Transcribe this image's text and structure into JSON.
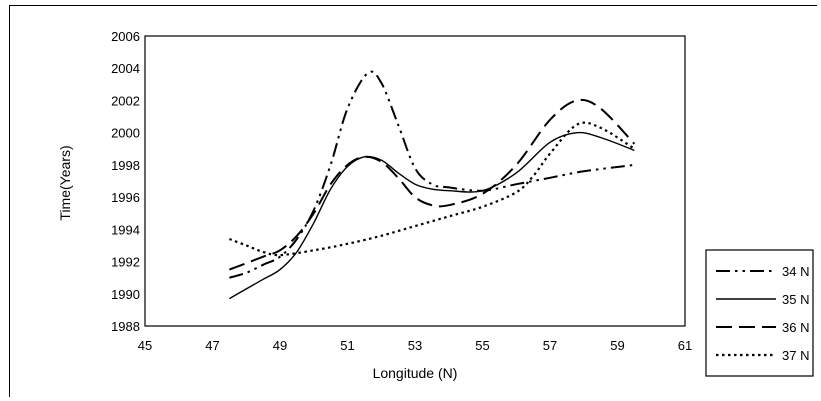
{
  "chart_data": {
    "type": "line",
    "title": "",
    "xlabel": "Longitude (N)",
    "ylabel": "Time(Years)",
    "xlim": [
      45,
      61
    ],
    "ylim": [
      1988,
      2006
    ],
    "xticks": [
      45,
      47,
      49,
      51,
      53,
      55,
      57,
      59,
      61
    ],
    "yticks": [
      1988,
      1990,
      1992,
      1994,
      1996,
      1998,
      2000,
      2002,
      2004,
      2006
    ],
    "grid": false,
    "legend_position": "bottom-right",
    "series": [
      {
        "name": "34 N",
        "style": "dash-dot-dot",
        "color": "#000000",
        "points": [
          [
            47.5,
            1991.0
          ],
          [
            48.0,
            1991.3
          ],
          [
            48.5,
            1991.8
          ],
          [
            49.0,
            1992.3
          ],
          [
            49.5,
            1993.4
          ],
          [
            50.0,
            1995.2
          ],
          [
            50.5,
            1998.0
          ],
          [
            51.0,
            2001.5
          ],
          [
            51.6,
            2003.7
          ],
          [
            52.0,
            2003.1
          ],
          [
            52.5,
            2000.5
          ],
          [
            53.0,
            1997.8
          ],
          [
            53.5,
            1996.8
          ],
          [
            54.0,
            1996.6
          ],
          [
            55.0,
            1996.4
          ],
          [
            56.0,
            1996.8
          ],
          [
            57.0,
            1997.2
          ],
          [
            58.0,
            1997.6
          ],
          [
            59.5,
            1998.0
          ]
        ]
      },
      {
        "name": "35 N",
        "style": "solid",
        "color": "#000000",
        "points": [
          [
            47.5,
            1989.7
          ],
          [
            48.0,
            1990.3
          ],
          [
            48.5,
            1990.9
          ],
          [
            49.0,
            1991.5
          ],
          [
            49.5,
            1992.6
          ],
          [
            50.0,
            1994.4
          ],
          [
            50.5,
            1996.5
          ],
          [
            51.0,
            1997.9
          ],
          [
            51.5,
            1998.5
          ],
          [
            52.0,
            1998.3
          ],
          [
            52.5,
            1997.5
          ],
          [
            53.0,
            1996.8
          ],
          [
            53.5,
            1996.5
          ],
          [
            54.0,
            1996.4
          ],
          [
            55.0,
            1996.4
          ],
          [
            56.0,
            1997.5
          ],
          [
            57.0,
            1999.4
          ],
          [
            57.8,
            2000.0
          ],
          [
            58.5,
            1999.7
          ],
          [
            59.5,
            1998.9
          ]
        ]
      },
      {
        "name": "36 N",
        "style": "long-dash",
        "color": "#000000",
        "points": [
          [
            47.5,
            1991.5
          ],
          [
            48.0,
            1991.9
          ],
          [
            48.5,
            1992.3
          ],
          [
            49.0,
            1992.7
          ],
          [
            49.5,
            1993.6
          ],
          [
            50.0,
            1995.0
          ],
          [
            50.5,
            1996.8
          ],
          [
            51.0,
            1998.0
          ],
          [
            51.5,
            1998.5
          ],
          [
            52.0,
            1998.2
          ],
          [
            52.5,
            1997.2
          ],
          [
            53.0,
            1996.0
          ],
          [
            53.5,
            1995.5
          ],
          [
            54.0,
            1995.5
          ],
          [
            55.0,
            1996.2
          ],
          [
            56.0,
            1998.0
          ],
          [
            57.0,
            2000.8
          ],
          [
            57.8,
            2002.0
          ],
          [
            58.5,
            2001.5
          ],
          [
            59.5,
            1999.3
          ]
        ]
      },
      {
        "name": "37 N",
        "style": "dotted",
        "color": "#000000",
        "points": [
          [
            47.5,
            1993.4
          ],
          [
            48.0,
            1993.0
          ],
          [
            48.5,
            1992.6
          ],
          [
            49.0,
            1992.4
          ],
          [
            50.0,
            1992.7
          ],
          [
            51.0,
            1993.1
          ],
          [
            52.0,
            1993.6
          ],
          [
            53.0,
            1994.2
          ],
          [
            54.0,
            1994.8
          ],
          [
            55.0,
            1995.4
          ],
          [
            56.0,
            1996.3
          ],
          [
            56.5,
            1997.3
          ],
          [
            57.0,
            1998.7
          ],
          [
            57.8,
            2000.5
          ],
          [
            58.5,
            2000.3
          ],
          [
            59.5,
            1999.0
          ]
        ]
      }
    ]
  }
}
